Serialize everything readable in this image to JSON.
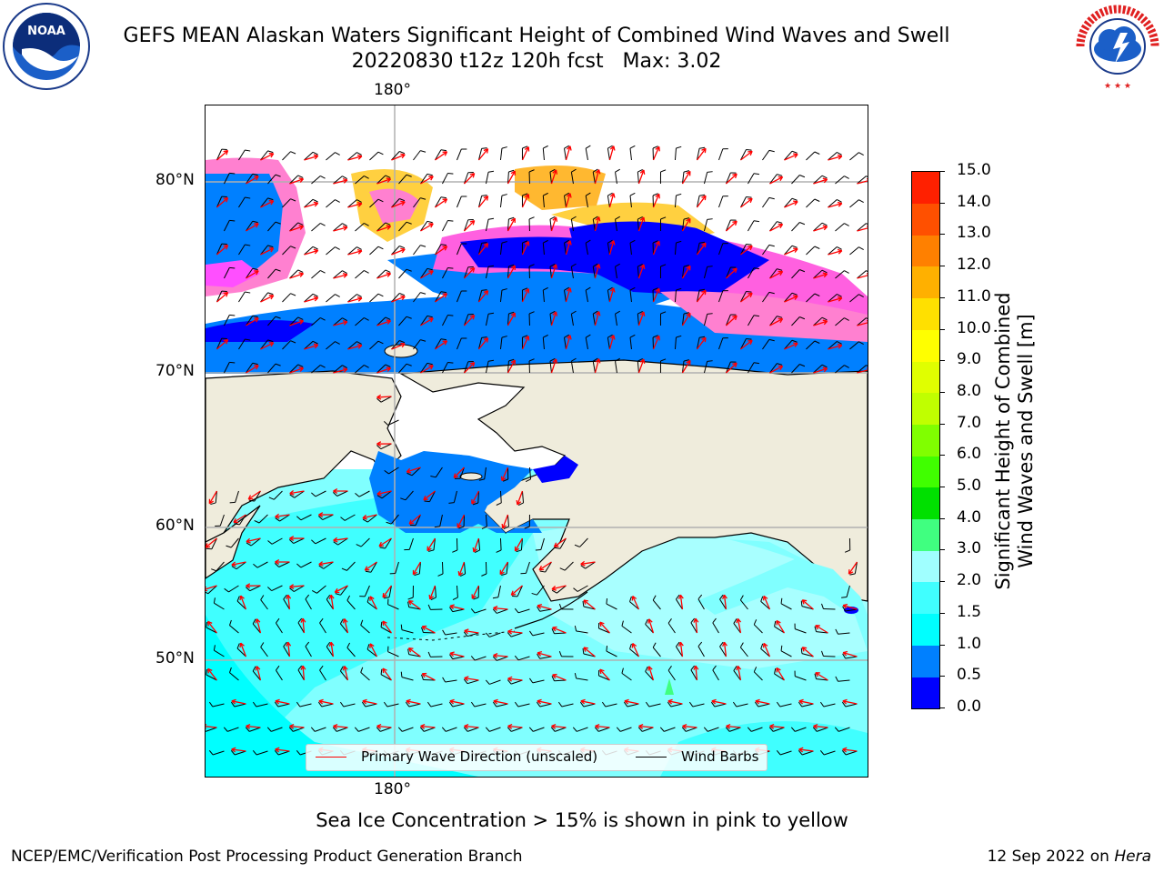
{
  "title": {
    "line1": "GEFS MEAN Alaskan Waters Significant Height of Combined Wind Waves and Swell",
    "line2": "20220830 t12z 120h fcst   Max: 3.02"
  },
  "logos": {
    "left": {
      "name": "noaa-logo",
      "text": "NOAA"
    },
    "right": {
      "name": "nws-logo",
      "text": "NATIONAL WEATHER SERVICE"
    }
  },
  "map": {
    "lon_labels_top": [
      "180°"
    ],
    "lon_labels_bottom": [
      "180°"
    ],
    "lat_labels": [
      "80°N",
      "70°N",
      "60°N",
      "50°N"
    ],
    "colors": {
      "land": "#efecdc",
      "ocean_calm": "#0000ff",
      "coast": "#000000",
      "grid": "#b0b0b0",
      "wave_arrow": "#ff0000",
      "wind_barb": "#000000"
    },
    "legend": {
      "primary_wave": "Primary Wave Direction (unscaled)",
      "wind_barbs": "Wind Barbs"
    }
  },
  "colorbar": {
    "label_line1": "Significant Height of Combined",
    "label_line2": "Wind Waves and Swell [m]",
    "ticks": [
      "0.0",
      "0.5",
      "1.0",
      "1.5",
      "2.0",
      "3.0",
      "4.0",
      "5.0",
      "6.0",
      "7.0",
      "8.0",
      "9.0",
      "10.0",
      "11.0",
      "12.0",
      "13.0",
      "14.0",
      "15.0"
    ],
    "colors": [
      "#0000ff",
      "#0080ff",
      "#00ffff",
      "#40ffff",
      "#a0ffff",
      "#40ff80",
      "#00e000",
      "#40ff00",
      "#80ff00",
      "#c0ff00",
      "#e0ff00",
      "#ffff00",
      "#ffe000",
      "#ffb000",
      "#ff8000",
      "#ff5000",
      "#ff2000"
    ]
  },
  "footer": {
    "ice_note": "Sea Ice Concentration > 15% is shown in pink to yellow",
    "branch": "NCEP/EMC/Verification Post Processing Product Generation Branch",
    "date": "12 Sep 2022 on",
    "host": "Hera"
  }
}
